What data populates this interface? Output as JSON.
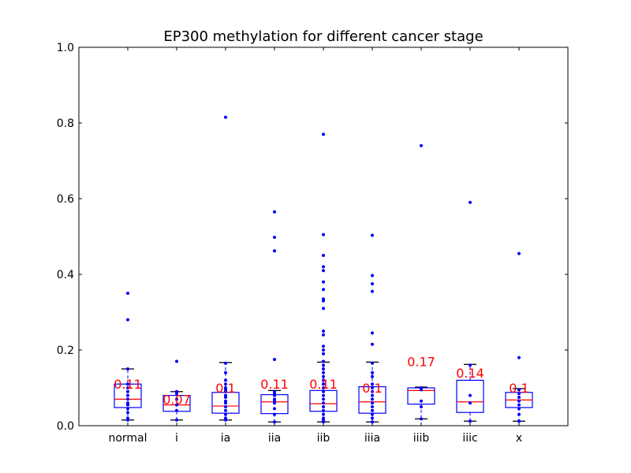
{
  "chart_data": {
    "type": "box",
    "title": "EP300 methylation for different cancer stage",
    "xlabel": "",
    "ylabel": "",
    "ylim": [
      0,
      1.0
    ],
    "yticks": [
      0.0,
      0.2,
      0.4,
      0.6,
      0.8,
      1.0
    ],
    "ytick_labels": [
      "0.0",
      "0.2",
      "0.4",
      "0.6",
      "0.8",
      "1.0"
    ],
    "grid": false,
    "colors": {
      "box": "#0000ff",
      "median": "#ff0000",
      "points": "#0000ff",
      "whisker": "#000000",
      "label": "#ff0000"
    },
    "categories": [
      "normal",
      "i",
      "ia",
      "iia",
      "iib",
      "iiia",
      "iiib",
      "iiic",
      "x"
    ],
    "boxes": [
      {
        "category": "normal",
        "q1": 0.048,
        "median": 0.07,
        "q3": 0.11,
        "whisker_low": 0.015,
        "whisker_high": 0.15,
        "mean_label": "0.11",
        "points": [
          0.015,
          0.02,
          0.035,
          0.045,
          0.055,
          0.06,
          0.07,
          0.08,
          0.09,
          0.1,
          0.11,
          0.15,
          0.28,
          0.35
        ]
      },
      {
        "category": "i",
        "q1": 0.038,
        "median": 0.055,
        "q3": 0.08,
        "whisker_low": 0.015,
        "whisker_high": 0.09,
        "mean_label": "0.07",
        "points": [
          0.015,
          0.04,
          0.055,
          0.07,
          0.085,
          0.09,
          0.17
        ]
      },
      {
        "category": "ia",
        "q1": 0.033,
        "median": 0.052,
        "q3": 0.088,
        "whisker_low": 0.015,
        "whisker_high": 0.167,
        "mean_label": "0.1",
        "points": [
          0.015,
          0.02,
          0.03,
          0.04,
          0.05,
          0.06,
          0.065,
          0.075,
          0.08,
          0.09,
          0.095,
          0.1,
          0.11,
          0.12,
          0.14,
          0.165,
          0.815
        ]
      },
      {
        "category": "iia",
        "q1": 0.032,
        "median": 0.063,
        "q3": 0.082,
        "whisker_low": 0.01,
        "whisker_high": 0.093,
        "mean_label": "0.11",
        "points": [
          0.01,
          0.03,
          0.045,
          0.06,
          0.065,
          0.07,
          0.08,
          0.085,
          0.09,
          0.175,
          0.462,
          0.498,
          0.565
        ]
      },
      {
        "category": "iib",
        "q1": 0.038,
        "median": 0.058,
        "q3": 0.093,
        "whisker_low": 0.01,
        "whisker_high": 0.168,
        "mean_label": "0.11",
        "points": [
          0.01,
          0.015,
          0.02,
          0.03,
          0.04,
          0.05,
          0.06,
          0.07,
          0.08,
          0.09,
          0.1,
          0.11,
          0.12,
          0.13,
          0.14,
          0.15,
          0.16,
          0.17,
          0.19,
          0.2,
          0.21,
          0.24,
          0.25,
          0.31,
          0.33,
          0.335,
          0.36,
          0.38,
          0.41,
          0.42,
          0.45,
          0.505,
          0.77
        ]
      },
      {
        "category": "iiia",
        "q1": 0.033,
        "median": 0.063,
        "q3": 0.103,
        "whisker_low": 0.01,
        "whisker_high": 0.168,
        "mean_label": "0.1",
        "points": [
          0.01,
          0.02,
          0.03,
          0.04,
          0.05,
          0.06,
          0.07,
          0.08,
          0.09,
          0.1,
          0.11,
          0.13,
          0.14,
          0.165,
          0.215,
          0.245,
          0.355,
          0.375,
          0.397,
          0.503
        ]
      },
      {
        "category": "iiib",
        "q1": 0.057,
        "median": 0.093,
        "q3": 0.1,
        "whisker_low": 0.018,
        "whisker_high": 0.102,
        "mean_label": "0.17",
        "points": [
          0.018,
          0.05,
          0.065,
          0.095,
          0.1,
          0.74
        ]
      },
      {
        "category": "iiic",
        "q1": 0.035,
        "median": 0.063,
        "q3": 0.12,
        "whisker_low": 0.012,
        "whisker_high": 0.162,
        "mean_label": "0.14",
        "points": [
          0.012,
          0.06,
          0.08,
          0.16,
          0.59
        ]
      },
      {
        "category": "x",
        "q1": 0.048,
        "median": 0.068,
        "q3": 0.088,
        "whisker_low": 0.012,
        "whisker_high": 0.098,
        "mean_label": "0.1",
        "points": [
          0.012,
          0.03,
          0.045,
          0.055,
          0.065,
          0.075,
          0.085,
          0.095,
          0.18,
          0.455
        ]
      }
    ]
  }
}
